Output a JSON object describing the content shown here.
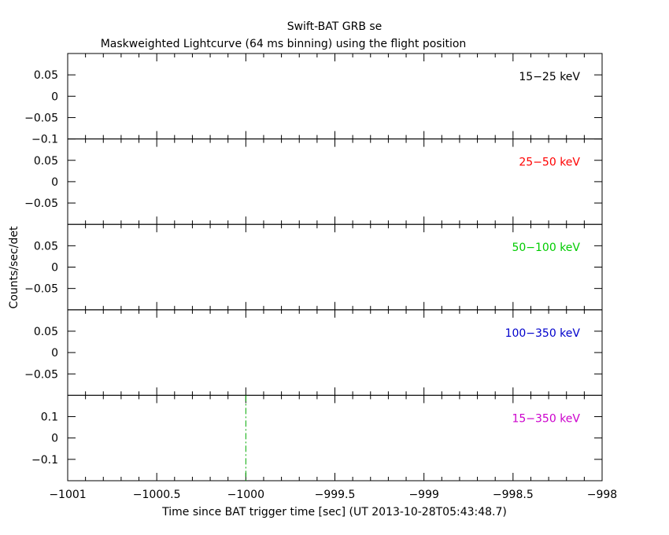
{
  "title": "Swift-BAT GRB se",
  "subtitle": "Maskweighted Lightcurve (64 ms binning) using the flight position",
  "ylabel": "Counts/sec/det",
  "xlabel": "Time since BAT trigger time [sec] (UT 2013-10-28T05:43:48.7)",
  "chart_data": {
    "type": "line",
    "title": "Swift-BAT GRB se",
    "subtitle": "Maskweighted Lightcurve (64 ms binning) using the flight position",
    "xlabel": "Time since BAT trigger time [sec] (UT 2013-10-28T05:43:48.7)",
    "ylabel": "Counts/sec/det",
    "xlim": [
      -1001,
      -998
    ],
    "x_ticks": [
      -1001,
      -1000.5,
      -1000,
      -999.5,
      -999,
      -998.5,
      -998
    ],
    "x_tick_labels": [
      "−1001",
      "−1000.5",
      "−1000",
      "−999.5",
      "−999",
      "−998.5",
      "−998"
    ],
    "grid": false,
    "panels": [
      {
        "band": "15−25 keV",
        "color": "#000000",
        "ylim": [
          -0.1,
          0.1
        ],
        "y_ticks": [
          -0.1,
          -0.05,
          0,
          0.05
        ],
        "y_tick_labels": [
          "−0.1",
          "−0.05",
          "0",
          "0.05"
        ],
        "markers": []
      },
      {
        "band": "25−50 keV",
        "color": "#ff0000",
        "ylim": [
          -0.1,
          0.1
        ],
        "y_ticks": [
          -0.05,
          0,
          0.05
        ],
        "y_tick_labels": [
          "−0.05",
          "0",
          "0.05"
        ],
        "markers": []
      },
      {
        "band": "50−100 keV",
        "color": "#00cc00",
        "ylim": [
          -0.1,
          0.1
        ],
        "y_ticks": [
          -0.05,
          0,
          0.05
        ],
        "y_tick_labels": [
          "−0.05",
          "0",
          "0.05"
        ],
        "markers": []
      },
      {
        "band": "100−350 keV",
        "color": "#0000cc",
        "ylim": [
          -0.1,
          0.1
        ],
        "y_ticks": [
          -0.05,
          0,
          0.05
        ],
        "y_tick_labels": [
          "−0.05",
          "0",
          "0.05"
        ],
        "markers": []
      },
      {
        "band": "15−350 keV",
        "color": "#cc00cc",
        "ylim": [
          -0.2,
          0.2
        ],
        "y_ticks": [
          -0.1,
          0,
          0.1
        ],
        "y_tick_labels": [
          "−0.1",
          "0",
          "0.1"
        ],
        "markers": [
          {
            "x": -1000,
            "color": "#00aa00",
            "style": "dash-dot"
          }
        ]
      }
    ]
  }
}
